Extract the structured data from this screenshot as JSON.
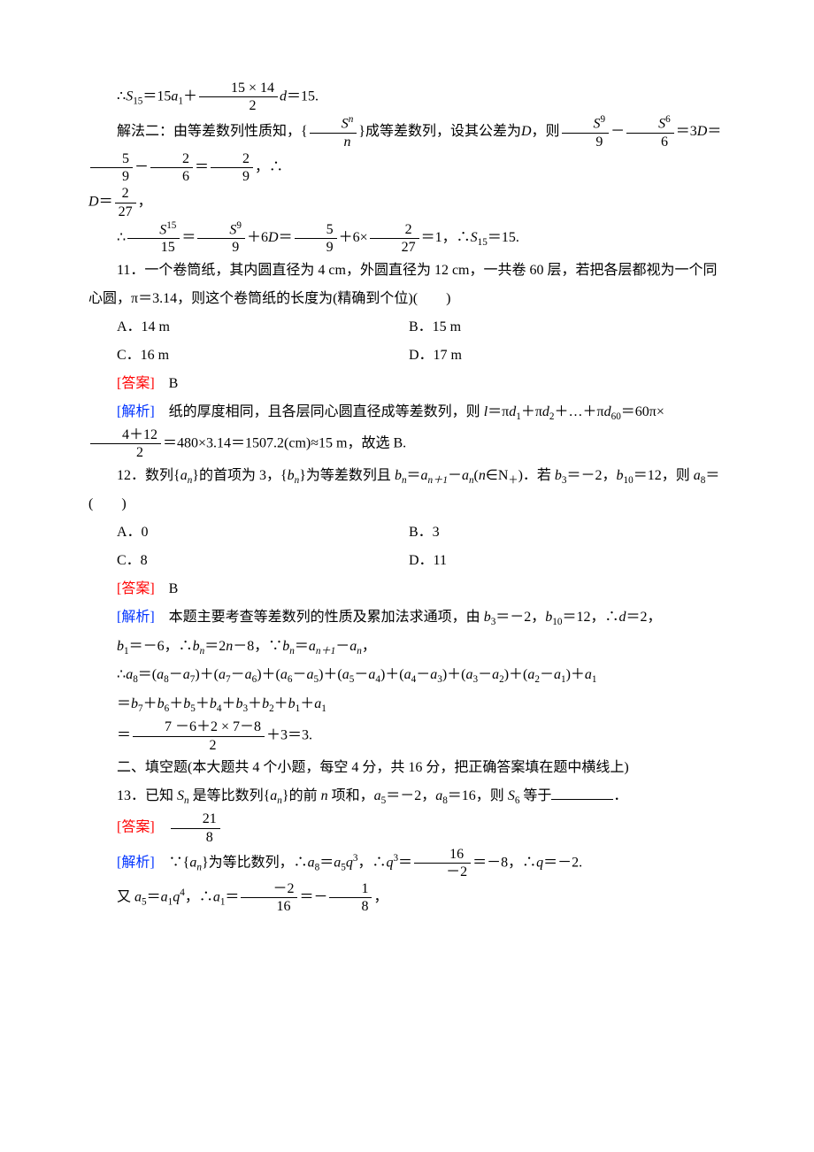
{
  "text_color": "#000000",
  "answer_color": "#ff0000",
  "analysis_color": "#0033ff",
  "background_color": "#ffffff",
  "font_family": "SimSun",
  "base_fontsize": 16,
  "line_height": 2.0,
  "line1a": "∴",
  "line1_S15": "S",
  "line1_S15sub": "15",
  "line1b": "＝15",
  "line1_a1": "a",
  "line1_a1sub": "1",
  "line1c": "＋",
  "line1_frac_num": "15 × 14",
  "line1_frac_den": "2",
  "line1_d": "d",
  "line1_end": "＝15.",
  "line2a": "解法二：由等差数列性质知，{",
  "line2_frac1_num_S": "S",
  "line2_frac1_num_n": "n",
  "line2_frac1_den": "n",
  "line2b": "}成等差数列，设其公差为",
  "line2_D1": "D",
  "line2c": "，则",
  "line2_frac2_num_S": "S",
  "line2_frac2_num_9": "9",
  "line2_frac2_den": "9",
  "line2d": "－",
  "line2_frac3_num_S": "S",
  "line2_frac3_num_6": "6",
  "line2_frac3_den": "6",
  "line2e": "＝3",
  "line2_D2": "D",
  "line2f": "＝",
  "line2_frac4_num": "5",
  "line2_frac4_den": "9",
  "line2g": "－",
  "line2_frac5_num": "2",
  "line2_frac5_den": "6",
  "line2h": "＝",
  "line2_frac6_num": "2",
  "line2_frac6_den": "9",
  "line2i": "，∴",
  "line3_D": "D",
  "line3a": "＝",
  "line3_frac_num": "2",
  "line3_frac_den": "27",
  "line3b": "，",
  "line4a": "∴",
  "line4_frac1_num_S": "S",
  "line4_frac1_num_15": "15",
  "line4_frac1_den": "15",
  "line4b": "＝",
  "line4_frac2_num_S": "S",
  "line4_frac2_num_9": "9",
  "line4_frac2_den": "9",
  "line4c": "＋6",
  "line4_D": "D",
  "line4d": "＝",
  "line4_frac3_num": "5",
  "line4_frac3_den": "9",
  "line4e": "＋6×",
  "line4_frac4_num": "2",
  "line4_frac4_den": "27",
  "line4f": "＝1，∴",
  "line4_S15": "S",
  "line4_S15sub": "15",
  "line4g": "＝15.",
  "q11a": "11．一个卷筒纸，其内圆直径为 4 cm，外圆直径为 12 cm，一共卷 60 层，若把各层都视为一个同心圆，π＝3.14，则这个卷筒纸的长度为(精确到个位)(　　)",
  "q11_optA": "A．14 m",
  "q11_optB": "B．15 m",
  "q11_optC": "C．16 m",
  "q11_optD": "D．17 m",
  "q11_answer_label": "[答案]",
  "q11_answer": "　B",
  "q11_analysis_label": "[解析]",
  "q11_analysis_a": "　纸的厚度相同，且各层同心圆直径成等差数列，则 ",
  "q11_l": "l",
  "q11_analysis_b": "＝π",
  "q11_d1": "d",
  "q11_d1sub": "1",
  "q11_analysis_c": "＋π",
  "q11_d2": "d",
  "q11_d2sub": "2",
  "q11_analysis_d": "＋…＋π",
  "q11_d60": "d",
  "q11_d60sub": "60",
  "q11_analysis_e": "＝60π×",
  "q11_frac_num": "4＋12",
  "q11_frac_den": "2",
  "q11_analysis_f": "＝480×3.14＝1507.2(cm)≈15 m，故选 B.",
  "q12a": "12．数列{",
  "q12_an": "a",
  "q12_ansub": "n",
  "q12b": "}的首项为 3，{",
  "q12_bn": "b",
  "q12_bnsub": "n",
  "q12c": "}为等差数列且 ",
  "q12_bn2": "b",
  "q12_bn2sub": "n",
  "q12d": "＝",
  "q12_an1": "a",
  "q12_an1sub": "n＋1",
  "q12e": "－",
  "q12_an2": "a",
  "q12_an2sub": "n",
  "q12f": "(",
  "q12_n": "n",
  "q12g": "∈N",
  "q12_plus": "＋",
  "q12h": ")．若 ",
  "q12_b3": "b",
  "q12_b3sub": "3",
  "q12i": "＝－2，",
  "q12_b10": "b",
  "q12_b10sub": "10",
  "q12j": "＝12，则 ",
  "q12_a8": "a",
  "q12_a8sub": "8",
  "q12k": "＝(　　)",
  "q12_optA": "A．0",
  "q12_optB": "B．3",
  "q12_optC": "C．8",
  "q12_optD": "D．11",
  "q12_answer_label": "[答案]",
  "q12_answer": "　B",
  "q12_analysis_label": "[解析]",
  "q12_analysis_a": "　本题主要考查等差数列的性质及累加法求通项，由 ",
  "q12_b3a": "b",
  "q12_b3asub": "3",
  "q12_analysis_b": "＝－2，",
  "q12_b10a": "b",
  "q12_b10asub": "10",
  "q12_analysis_c": "＝12，∴",
  "q12_d": "d",
  "q12_analysis_d": "＝2，",
  "q12_line2_b1": "b",
  "q12_line2_b1sub": "1",
  "q12_line2a": "＝－6，∴",
  "q12_line2_bn": "b",
  "q12_line2_bnsub": "n",
  "q12_line2b": "＝2",
  "q12_line2_n": "n",
  "q12_line2c": "－8，∵",
  "q12_line2_bn2": "b",
  "q12_line2_bn2sub": "n",
  "q12_line2d": "＝",
  "q12_line2_an1": "a",
  "q12_line2_an1sub": "n＋1",
  "q12_line2e": "－",
  "q12_line2_an": "a",
  "q12_line2_ansub": "n",
  "q12_line2f": "，",
  "q12_line3a": "∴",
  "q12_line3_a8": "a",
  "q12_line3_a8sub": "8",
  "q12_line3b": "＝(",
  "q12_line3_a8b": "a",
  "q12_line3_a8bsub": "8",
  "q12_line3c": "－",
  "q12_line3_a7": "a",
  "q12_line3_a7sub": "7",
  "q12_line3d": ")＋(",
  "q12_line3_a7b": "a",
  "q12_line3_a7bsub": "7",
  "q12_line3e": "－",
  "q12_line3_a6": "a",
  "q12_line3_a6sub": "6",
  "q12_line3f": ")＋(",
  "q12_line3_a6b": "a",
  "q12_line3_a6bsub": "6",
  "q12_line3g": "－",
  "q12_line3_a5": "a",
  "q12_line3_a5sub": "5",
  "q12_line3h": ")＋(",
  "q12_line3_a5b": "a",
  "q12_line3_a5bsub": "5",
  "q12_line3i": "－",
  "q12_line3_a4": "a",
  "q12_line3_a4sub": "4",
  "q12_line3j": ")＋(",
  "q12_line3_a4b": "a",
  "q12_line3_a4bsub": "4",
  "q12_line3k": "－",
  "q12_line3_a3": "a",
  "q12_line3_a3sub": "3",
  "q12_line3l": ")＋(",
  "q12_line3_a3b": "a",
  "q12_line3_a3bsub": "3",
  "q12_line3m": "－",
  "q12_line3_a2": "a",
  "q12_line3_a2sub": "2",
  "q12_line3n": ")＋(",
  "q12_line3_a2b": "a",
  "q12_line3_a2bsub": "2",
  "q12_line3o": "－",
  "q12_line3_a1": "a",
  "q12_line3_a1sub": "1",
  "q12_line3p": ")＋",
  "q12_line3_a1b": "a",
  "q12_line3_a1bsub": "1",
  "q12_line4a": "＝",
  "q12_line4_b7": "b",
  "q12_line4_b7sub": "7",
  "q12_line4b": "＋",
  "q12_line4_b6": "b",
  "q12_line4_b6sub": "6",
  "q12_line4c": "＋",
  "q12_line4_b5": "b",
  "q12_line4_b5sub": "5",
  "q12_line4d": "＋",
  "q12_line4_b4": "b",
  "q12_line4_b4sub": "4",
  "q12_line4e": "＋",
  "q12_line4_b3": "b",
  "q12_line4_b3sub": "3",
  "q12_line4f": "＋",
  "q12_line4_b2": "b",
  "q12_line4_b2sub": "2",
  "q12_line4g": "＋",
  "q12_line4_b1": "b",
  "q12_line4_b1sub": "1",
  "q12_line4h": "＋",
  "q12_line4_a1": "a",
  "q12_line4_a1sub": "1",
  "q12_line5a": "＝",
  "q12_line5_num": "7 －6＋2 × 7－8",
  "q12_line5_den": "2",
  "q12_line5b": "＋3＝3.",
  "sec2": "二、填空题(本大题共 4 个小题，每空 4 分，共 16 分，把正确答案填在题中横线上)",
  "q13a": "13．已知 ",
  "q13_Sn": "S",
  "q13_Snsub": "n",
  "q13b": " 是等比数列{",
  "q13_an": "a",
  "q13_ansub": "n",
  "q13c": "}的前 ",
  "q13_n": "n",
  "q13d": " 项和，",
  "q13_a5": "a",
  "q13_a5sub": "5",
  "q13e": "＝－2，",
  "q13_a8": "a",
  "q13_a8sub": "8",
  "q13f": "＝16，则 ",
  "q13_S6": "S",
  "q13_S6sub": "6",
  "q13g": " 等于",
  "q13h": "．",
  "q13_answer_label": "[答案]",
  "q13_answer_num": "21",
  "q13_answer_den": "8",
  "q13_analysis_label": "[解析]",
  "q13_analysis_a": "　∵{",
  "q13_an2": "a",
  "q13_an2sub": "n",
  "q13_analysis_b": "}为等比数列，∴",
  "q13_a8b": "a",
  "q13_a8bsub": "8",
  "q13_analysis_c": "＝",
  "q13_a5b": "a",
  "q13_a5bsub": "5",
  "q13_q3": "q",
  "q13_q3sup": "3",
  "q13_analysis_d": "，∴",
  "q13_q3b": "q",
  "q13_q3bsup": "3",
  "q13_analysis_e": "＝",
  "q13_frac1_num": "16",
  "q13_frac1_den": "－2",
  "q13_analysis_f": "＝－8，∴",
  "q13_q": "q",
  "q13_analysis_g": "＝－2.",
  "q13_line2a": "又 ",
  "q13_a5c": "a",
  "q13_a5csub": "5",
  "q13_line2b": "＝",
  "q13_a1": "a",
  "q13_a1sub": "1",
  "q13_q4": "q",
  "q13_q4sup": "4",
  "q13_line2c": "，∴",
  "q13_a1b": "a",
  "q13_a1bsub": "1",
  "q13_line2d": "＝",
  "q13_frac2_num": "－2",
  "q13_frac2_den": "16",
  "q13_line2e": "＝－",
  "q13_frac3_num": "1",
  "q13_frac3_den": "8",
  "q13_line2f": "，"
}
